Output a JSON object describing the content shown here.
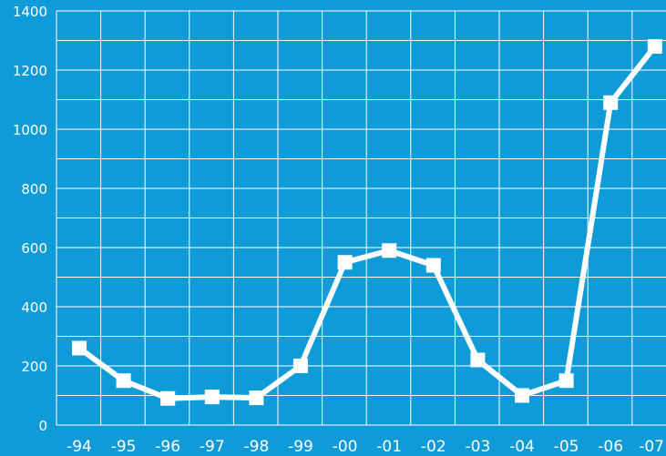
{
  "colors": {
    "background": "#0f9bd8",
    "grid": "#ffffff",
    "line": "#ffffff",
    "text": "#ffffff"
  },
  "chart_data": {
    "type": "line",
    "title": "",
    "xlabel": "",
    "ylabel": "",
    "categories": [
      "-94",
      "-95",
      "-96",
      "-97",
      "-98",
      "-99",
      "-00",
      "-01",
      "-02",
      "-03",
      "-04",
      "-05",
      "-06",
      "-07"
    ],
    "y_ticks": [
      "0",
      "200",
      "400",
      "600",
      "800",
      "1000",
      "1200",
      "1400"
    ],
    "ylim": [
      0,
      1400
    ],
    "grid": true,
    "marker": "square",
    "series": [
      {
        "values": [
          260,
          150,
          90,
          95,
          92,
          200,
          550,
          590,
          540,
          220,
          100,
          150,
          1090,
          1280
        ]
      }
    ]
  }
}
